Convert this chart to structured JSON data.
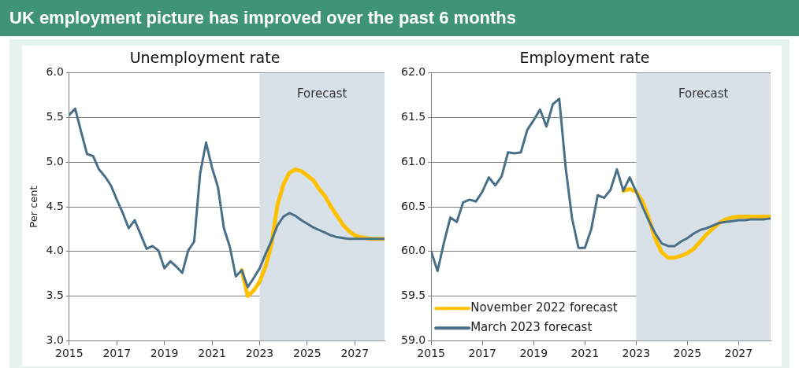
{
  "chart_data": [
    {
      "type": "line",
      "title": "Unemployment rate",
      "ylabel": "Per cent",
      "annotations": [
        "UK employment picture has improved over the past 6 months"
      ],
      "x": [
        2015,
        2015.25,
        2015.5,
        2015.75,
        2016,
        2016.25,
        2016.5,
        2016.75,
        2017,
        2017.25,
        2017.5,
        2017.75,
        2018,
        2018.25,
        2018.5,
        2018.75,
        2019,
        2019.25,
        2019.5,
        2019.75,
        2020,
        2020.25,
        2020.5,
        2020.75,
        2021,
        2021.25,
        2021.5,
        2021.75,
        2022,
        2022.25,
        2022.5,
        2022.75,
        2023,
        2023.25,
        2023.5,
        2023.75,
        2024,
        2024.25,
        2024.5,
        2024.75,
        2025,
        2025.25,
        2025.5,
        2025.75,
        2026,
        2026.25,
        2026.5,
        2026.75,
        2027,
        2027.25,
        2027.5,
        2027.75,
        2028,
        2028.25
      ],
      "series": [
        {
          "color": "#ffc000",
          "values": [
            null,
            null,
            null,
            null,
            null,
            null,
            null,
            null,
            null,
            null,
            null,
            null,
            null,
            null,
            null,
            null,
            null,
            null,
            null,
            null,
            null,
            null,
            null,
            null,
            null,
            null,
            null,
            null,
            null,
            3.79,
            3.5,
            3.56,
            3.66,
            3.83,
            4.08,
            4.52,
            4.75,
            4.88,
            4.92,
            4.9,
            4.85,
            4.8,
            4.7,
            4.62,
            4.5,
            4.4,
            4.3,
            4.23,
            4.18,
            4.16,
            4.15,
            4.14,
            4.14,
            4.14
          ]
        },
        {
          "color": "#4a7089",
          "values": [
            5.53,
            5.6,
            5.34,
            5.09,
            5.07,
            4.92,
            4.84,
            4.74,
            4.58,
            4.43,
            4.26,
            4.35,
            4.19,
            4.03,
            4.06,
            4.01,
            3.81,
            3.89,
            3.83,
            3.76,
            4.01,
            4.11,
            4.87,
            5.22,
            4.94,
            4.72,
            4.26,
            4.05,
            3.72,
            3.79,
            3.6,
            3.7,
            3.81,
            3.97,
            4.12,
            4.29,
            4.39,
            4.43,
            4.4,
            4.35,
            4.31,
            4.27,
            4.24,
            4.21,
            4.18,
            4.16,
            4.15,
            4.14,
            4.14,
            4.14,
            4.14,
            4.14,
            4.14,
            4.14
          ]
        }
      ],
      "xlim": [
        2015,
        2028.25
      ],
      "xticks": [
        2015,
        2017,
        2019,
        2021,
        2023,
        2025,
        2027
      ],
      "ylim": [
        3,
        6
      ],
      "yticks": [
        {
          "value": 3,
          "label": "3.0"
        },
        3.5,
        {
          "value": 4,
          "label": "4.0"
        },
        4.5,
        {
          "value": 5,
          "label": "5.0"
        },
        5.5,
        {
          "value": 6,
          "label": "6.0"
        }
      ],
      "bands": [
        {
          "axis": "x",
          "from": 2023,
          "to": 2028.25,
          "label": "Forecast",
          "color": "#d9e1e8"
        }
      ],
      "grid": "y"
    },
    {
      "type": "line",
      "title": "Employment rate",
      "legend": "bottom left",
      "x": [
        2015,
        2015.25,
        2015.5,
        2015.75,
        2016,
        2016.25,
        2016.5,
        2016.75,
        2017,
        2017.25,
        2017.5,
        2017.75,
        2018,
        2018.25,
        2018.5,
        2018.75,
        2019,
        2019.25,
        2019.5,
        2019.75,
        2020,
        2020.25,
        2020.5,
        2020.75,
        2021,
        2021.25,
        2021.5,
        2021.75,
        2022,
        2022.25,
        2022.5,
        2022.75,
        2023,
        2023.25,
        2023.5,
        2023.75,
        2024,
        2024.25,
        2024.5,
        2024.75,
        2025,
        2025.25,
        2025.5,
        2025.75,
        2026,
        2026.25,
        2026.5,
        2026.75,
        2027,
        2027.25,
        2027.5,
        2027.75,
        2028,
        2028.25
      ],
      "series": [
        {
          "name": "November 2022 forecast",
          "color": "#ffc000",
          "values": [
            null,
            null,
            null,
            null,
            null,
            null,
            null,
            null,
            null,
            null,
            null,
            null,
            null,
            null,
            null,
            null,
            null,
            null,
            null,
            null,
            null,
            null,
            null,
            null,
            null,
            null,
            null,
            null,
            null,
            null,
            60.68,
            60.7,
            60.67,
            60.56,
            60.37,
            60.14,
            59.99,
            59.93,
            59.93,
            59.95,
            59.98,
            60.03,
            60.11,
            60.19,
            60.26,
            60.32,
            60.36,
            60.38,
            60.39,
            60.39,
            60.39,
            60.39,
            60.39,
            60.39
          ]
        },
        {
          "name": "March 2023 forecast",
          "color": "#4a7089",
          "values": [
            60.0,
            59.78,
            60.1,
            60.38,
            60.33,
            60.55,
            60.58,
            60.56,
            60.67,
            60.83,
            60.74,
            60.84,
            61.11,
            61.1,
            61.11,
            61.36,
            61.47,
            61.59,
            61.4,
            61.65,
            61.71,
            60.94,
            60.37,
            60.04,
            60.04,
            60.25,
            60.63,
            60.6,
            60.69,
            60.92,
            60.68,
            60.83,
            60.67,
            60.5,
            60.34,
            60.2,
            60.09,
            60.06,
            60.06,
            60.11,
            60.15,
            60.2,
            60.24,
            60.26,
            60.29,
            60.32,
            60.33,
            60.34,
            60.35,
            60.35,
            60.36,
            60.36,
            60.36,
            60.37
          ]
        }
      ],
      "xlim": [
        2015,
        2028.25
      ],
      "xticks": [
        2015,
        2017,
        2019,
        2021,
        2023,
        2025,
        2027
      ],
      "ylim": [
        59,
        62
      ],
      "yticks": [
        {
          "value": 59,
          "label": "59.0"
        },
        59.5,
        {
          "value": 60,
          "label": "60.0"
        },
        60.5,
        {
          "value": 61,
          "label": "61.0"
        },
        61.5,
        {
          "value": 62,
          "label": "62.0"
        }
      ],
      "bands": [
        {
          "axis": "x",
          "from": 2023,
          "to": 2028.25,
          "label": "Forecast",
          "color": "#d9e1e8"
        }
      ],
      "grid": "y"
    }
  ]
}
